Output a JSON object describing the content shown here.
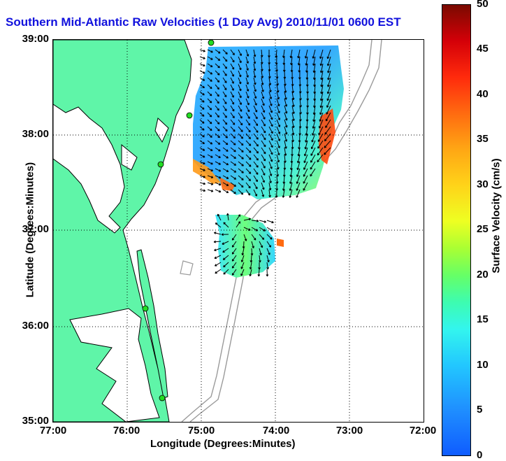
{
  "title": "Southern Mid-Atlantic Raw Velocities (1 Day Avg) 2010/11/01 0600 EST",
  "axes": {
    "xlabel": "Longitude (Degrees:Minutes)",
    "ylabel": "Latitude (Degrees:Minutes)",
    "lat_ticks": [
      "39:00",
      "38:00",
      "37:00",
      "36:00",
      "35:00"
    ],
    "lon_ticks": [
      "77:00",
      "76:00",
      "75:00",
      "74:00",
      "73:00",
      "72:00"
    ]
  },
  "colorbar": {
    "label": "Surface Velocity (cm/s)",
    "ticks": [
      "50",
      "45",
      "40",
      "35",
      "30",
      "25",
      "20",
      "15",
      "10",
      "5",
      "0"
    ],
    "min": 0,
    "max": 50
  },
  "colors": {
    "land": "#5ff5a8",
    "title": "#1111dd",
    "station": "#22dd22"
  },
  "grid": true,
  "stations_count_shown": 5
}
